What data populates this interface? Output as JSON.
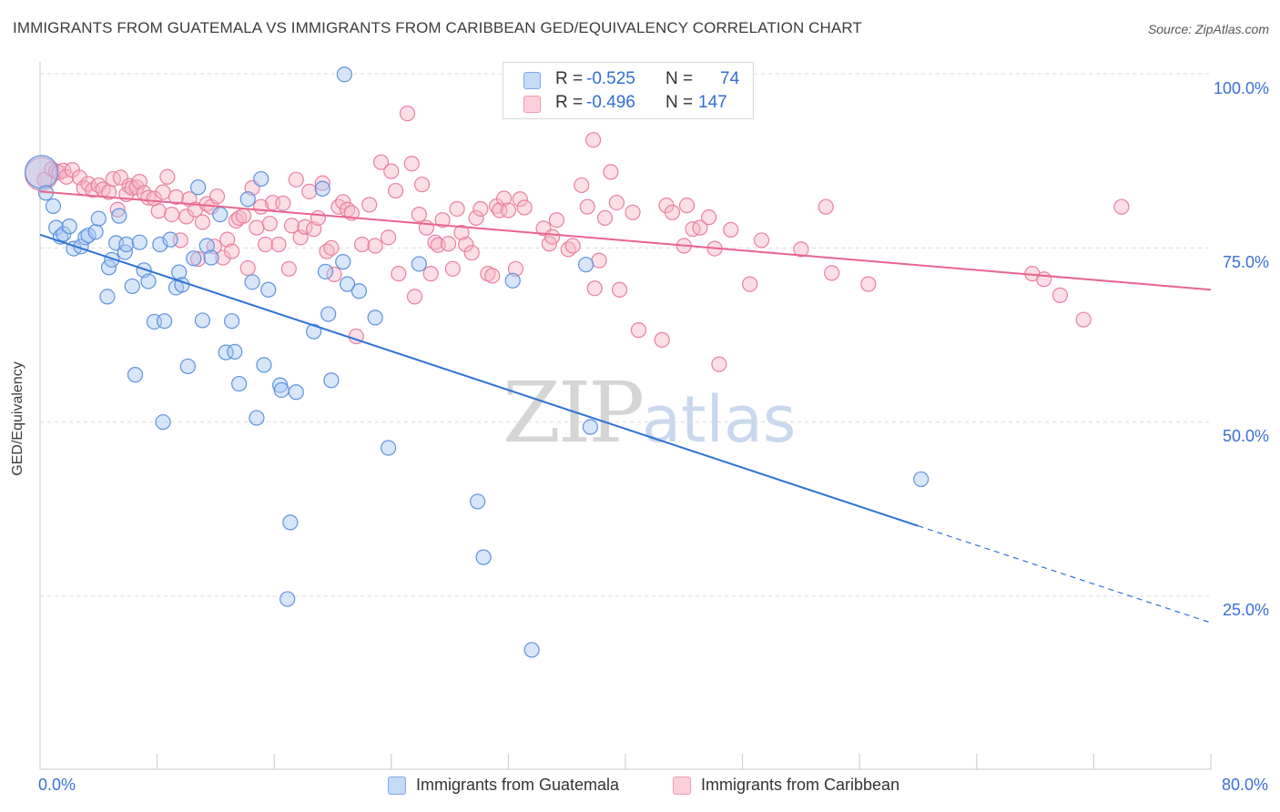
{
  "header": {
    "title": "IMMIGRANTS FROM GUATEMALA VS IMMIGRANTS FROM CARIBBEAN GED/EQUIVALENCY CORRELATION CHART",
    "source": "Source: ZipAtlas.com"
  },
  "watermark": {
    "zip": "ZIP",
    "atlas": "atlas"
  },
  "legend": {
    "rows": [
      {
        "r_label": "R =",
        "r_value": "-0.525",
        "n_label": "N =",
        "n_value": "74",
        "color": "#a9c8f3"
      },
      {
        "r_label": "R =",
        "r_value": "-0.496",
        "n_label": "N =",
        "n_value": "147",
        "color": "#f7b6c8"
      }
    ]
  },
  "bottom_legend": {
    "guatemala": "Immigrants from Guatemala",
    "caribbean": "Immigrants from Caribbean"
  },
  "axes": {
    "ylabel": "GED/Equivalency",
    "x_min_label": "0.0%",
    "x_max_label": "80.0%",
    "y_ticks": [
      "100.0%",
      "75.0%",
      "50.0%",
      "25.0%"
    ]
  },
  "colors": {
    "guatemala_fill": "#a9c8f3",
    "guatemala_stroke": "#5e92dc",
    "guatemala_line": "#2f72d6",
    "caribbean_fill": "#f7b6c8",
    "caribbean_stroke": "#e9809f",
    "caribbean_line": "#e8648f",
    "tick_text": "#3a6fd8"
  },
  "chart_data": {
    "type": "scatter",
    "title": "IMMIGRANTS FROM GUATEMALA VS IMMIGRANTS FROM CARIBBEAN GED/EQUIVALENCY CORRELATION CHART",
    "xlabel": "",
    "ylabel": "GED/Equivalency",
    "xlim": [
      0,
      80
    ],
    "ylim": [
      2,
      100
    ],
    "x_unit": "%",
    "y_unit": "%",
    "grid": true,
    "legend_position": "top-center",
    "series": [
      {
        "name": "Immigrants from Guatemala",
        "r": -0.525,
        "n": 74,
        "trend": {
          "x0": 0,
          "y0": 76.9,
          "x1": 60,
          "y1": 35.1,
          "dashed_to_x": 80,
          "dashed_to_y": 21.2
        },
        "points": [
          [
            0.1,
            85.9
          ],
          [
            0.4,
            82.9
          ],
          [
            0.9,
            81.0
          ],
          [
            1.1,
            77.9
          ],
          [
            1.4,
            76.6
          ],
          [
            1.6,
            77.0
          ],
          [
            2.0,
            78.1
          ],
          [
            2.3,
            74.9
          ],
          [
            2.8,
            75.2
          ],
          [
            3.1,
            76.5
          ],
          [
            3.3,
            76.8
          ],
          [
            3.8,
            77.3
          ],
          [
            4.0,
            79.2
          ],
          [
            4.6,
            68.0
          ],
          [
            4.7,
            72.2
          ],
          [
            4.9,
            73.3
          ],
          [
            5.2,
            75.7
          ],
          [
            5.4,
            79.6
          ],
          [
            5.8,
            74.4
          ],
          [
            5.9,
            75.5
          ],
          [
            6.3,
            69.5
          ],
          [
            6.5,
            56.8
          ],
          [
            6.8,
            75.8
          ],
          [
            7.1,
            71.8
          ],
          [
            7.4,
            70.2
          ],
          [
            7.8,
            64.4
          ],
          [
            8.2,
            75.5
          ],
          [
            8.4,
            50.0
          ],
          [
            8.5,
            64.5
          ],
          [
            8.9,
            76.2
          ],
          [
            9.3,
            69.3
          ],
          [
            9.5,
            71.5
          ],
          [
            9.7,
            69.7
          ],
          [
            10.1,
            58.0
          ],
          [
            10.5,
            73.5
          ],
          [
            10.8,
            83.7
          ],
          [
            11.1,
            64.6
          ],
          [
            11.4,
            75.3
          ],
          [
            11.7,
            73.6
          ],
          [
            12.3,
            79.8
          ],
          [
            12.7,
            60.0
          ],
          [
            13.1,
            64.5
          ],
          [
            13.3,
            60.1
          ],
          [
            13.6,
            55.5
          ],
          [
            14.2,
            82.0
          ],
          [
            14.5,
            70.1
          ],
          [
            14.8,
            50.6
          ],
          [
            15.1,
            84.9
          ],
          [
            15.3,
            58.2
          ],
          [
            15.6,
            69.0
          ],
          [
            16.4,
            55.3
          ],
          [
            16.5,
            54.6
          ],
          [
            16.9,
            24.6
          ],
          [
            17.1,
            35.6
          ],
          [
            17.5,
            54.3
          ],
          [
            18.7,
            63.0
          ],
          [
            19.3,
            83.5
          ],
          [
            19.5,
            71.6
          ],
          [
            19.7,
            65.5
          ],
          [
            19.9,
            56.0
          ],
          [
            20.7,
            73.0
          ],
          [
            20.8,
            99.9
          ],
          [
            21.0,
            69.8
          ],
          [
            21.8,
            68.8
          ],
          [
            22.9,
            65.0
          ],
          [
            23.8,
            46.3
          ],
          [
            25.9,
            72.7
          ],
          [
            29.9,
            38.6
          ],
          [
            30.3,
            30.6
          ],
          [
            32.3,
            70.3
          ],
          [
            33.6,
            17.3
          ],
          [
            37.3,
            72.6
          ],
          [
            37.6,
            49.3
          ],
          [
            60.2,
            41.8
          ]
        ]
      },
      {
        "name": "Immigrants from Caribbean",
        "r": -0.496,
        "n": 147,
        "trend": {
          "x0": 0,
          "y0": 83.1,
          "x1": 80,
          "y1": 69.0
        },
        "points": [
          [
            0.1,
            85.6
          ],
          [
            0.3,
            84.8
          ],
          [
            0.8,
            86.3
          ],
          [
            1.1,
            86.0
          ],
          [
            1.3,
            85.8
          ],
          [
            1.6,
            86.1
          ],
          [
            1.8,
            85.2
          ],
          [
            2.2,
            86.2
          ],
          [
            2.7,
            85.1
          ],
          [
            3.0,
            83.6
          ],
          [
            3.3,
            84.2
          ],
          [
            3.6,
            83.3
          ],
          [
            4.0,
            84.0
          ],
          [
            4.3,
            83.4
          ],
          [
            4.7,
            83.0
          ],
          [
            5.0,
            84.9
          ],
          [
            5.3,
            80.5
          ],
          [
            5.5,
            85.1
          ],
          [
            5.9,
            82.7
          ],
          [
            6.1,
            83.9
          ],
          [
            6.3,
            83.6
          ],
          [
            6.6,
            83.7
          ],
          [
            6.8,
            84.5
          ],
          [
            7.1,
            82.9
          ],
          [
            7.4,
            82.2
          ],
          [
            7.8,
            82.1
          ],
          [
            8.1,
            80.3
          ],
          [
            8.4,
            83.0
          ],
          [
            8.7,
            85.2
          ],
          [
            9.0,
            79.8
          ],
          [
            9.3,
            82.3
          ],
          [
            9.6,
            76.1
          ],
          [
            10.0,
            79.5
          ],
          [
            10.2,
            82.0
          ],
          [
            10.6,
            80.5
          ],
          [
            10.8,
            73.4
          ],
          [
            11.1,
            78.7
          ],
          [
            11.4,
            81.3
          ],
          [
            11.7,
            80.9
          ],
          [
            11.9,
            75.2
          ],
          [
            12.1,
            82.4
          ],
          [
            12.5,
            73.6
          ],
          [
            12.8,
            76.2
          ],
          [
            13.1,
            74.5
          ],
          [
            13.4,
            78.9
          ],
          [
            13.6,
            79.3
          ],
          [
            13.9,
            79.6
          ],
          [
            14.2,
            72.1
          ],
          [
            14.5,
            83.6
          ],
          [
            14.8,
            77.9
          ],
          [
            15.1,
            80.9
          ],
          [
            15.4,
            75.5
          ],
          [
            15.7,
            78.5
          ],
          [
            15.9,
            81.5
          ],
          [
            16.3,
            75.5
          ],
          [
            16.6,
            81.4
          ],
          [
            17.0,
            72.0
          ],
          [
            17.2,
            78.2
          ],
          [
            17.5,
            84.8
          ],
          [
            17.8,
            76.5
          ],
          [
            18.1,
            78.0
          ],
          [
            18.4,
            83.1
          ],
          [
            18.7,
            77.7
          ],
          [
            19.0,
            79.3
          ],
          [
            19.3,
            84.3
          ],
          [
            19.6,
            74.5
          ],
          [
            19.9,
            75.0
          ],
          [
            20.1,
            71.2
          ],
          [
            20.4,
            80.9
          ],
          [
            20.7,
            81.6
          ],
          [
            21.0,
            80.5
          ],
          [
            21.3,
            80.0
          ],
          [
            21.6,
            62.3
          ],
          [
            22.0,
            75.5
          ],
          [
            22.5,
            81.2
          ],
          [
            22.9,
            75.3
          ],
          [
            23.3,
            87.3
          ],
          [
            23.8,
            76.5
          ],
          [
            24.0,
            86.0
          ],
          [
            24.3,
            83.2
          ],
          [
            24.5,
            71.3
          ],
          [
            25.1,
            94.3
          ],
          [
            25.4,
            87.1
          ],
          [
            25.6,
            68.0
          ],
          [
            25.9,
            79.8
          ],
          [
            26.1,
            84.1
          ],
          [
            26.4,
            77.9
          ],
          [
            26.7,
            71.3
          ],
          [
            27.0,
            75.8
          ],
          [
            27.2,
            75.4
          ],
          [
            27.5,
            79.0
          ],
          [
            27.9,
            75.6
          ],
          [
            28.2,
            72.0
          ],
          [
            28.5,
            80.6
          ],
          [
            28.8,
            77.2
          ],
          [
            29.1,
            75.5
          ],
          [
            29.5,
            74.3
          ],
          [
            29.8,
            79.3
          ],
          [
            30.1,
            80.6
          ],
          [
            30.6,
            71.3
          ],
          [
            30.9,
            71.0
          ],
          [
            31.2,
            81.0
          ],
          [
            31.4,
            80.4
          ],
          [
            31.7,
            82.1
          ],
          [
            32.0,
            80.4
          ],
          [
            32.5,
            72.0
          ],
          [
            32.8,
            82.0
          ],
          [
            33.1,
            80.8
          ],
          [
            34.4,
            77.8
          ],
          [
            34.8,
            75.6
          ],
          [
            35.0,
            76.6
          ],
          [
            35.3,
            79.0
          ],
          [
            36.1,
            74.8
          ],
          [
            36.4,
            75.3
          ],
          [
            37.0,
            84.0
          ],
          [
            37.4,
            80.9
          ],
          [
            37.8,
            90.5
          ],
          [
            37.9,
            69.2
          ],
          [
            38.2,
            73.2
          ],
          [
            38.6,
            79.3
          ],
          [
            39.0,
            85.9
          ],
          [
            39.4,
            81.5
          ],
          [
            39.6,
            69.0
          ],
          [
            40.5,
            80.1
          ],
          [
            40.9,
            63.2
          ],
          [
            42.5,
            61.8
          ],
          [
            42.8,
            81.1
          ],
          [
            43.2,
            80.1
          ],
          [
            44.0,
            75.3
          ],
          [
            44.2,
            81.1
          ],
          [
            44.6,
            77.7
          ],
          [
            45.1,
            77.9
          ],
          [
            45.7,
            79.4
          ],
          [
            46.1,
            74.9
          ],
          [
            46.4,
            58.3
          ],
          [
            47.2,
            77.6
          ],
          [
            48.5,
            69.8
          ],
          [
            49.3,
            76.1
          ],
          [
            52.0,
            74.8
          ],
          [
            53.7,
            80.9
          ],
          [
            54.1,
            71.4
          ],
          [
            56.6,
            69.8
          ],
          [
            67.8,
            71.3
          ],
          [
            68.6,
            70.5
          ],
          [
            69.7,
            68.2
          ],
          [
            71.3,
            64.7
          ],
          [
            73.9,
            80.9
          ]
        ]
      }
    ]
  }
}
